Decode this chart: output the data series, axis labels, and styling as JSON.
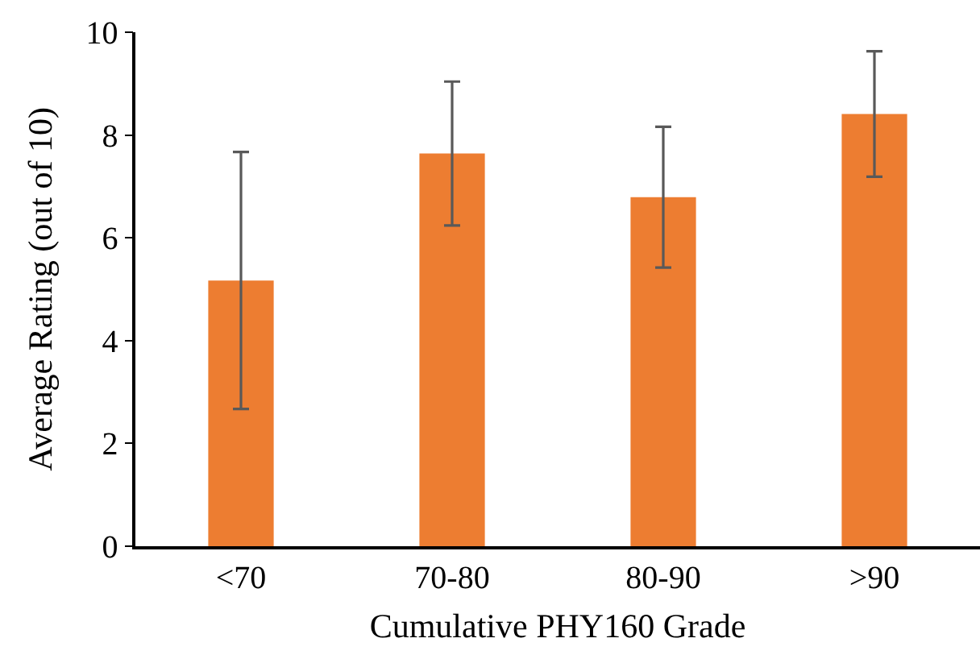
{
  "chart_data": {
    "type": "bar",
    "xlabel": "Cumulative PHY160 Grade",
    "ylabel": "Average Rating (out of 10)",
    "categories": [
      "<70",
      "70-80",
      "80-90",
      ">90"
    ],
    "values": [
      5.17,
      7.64,
      6.79,
      8.41
    ],
    "errors": [
      2.5,
      1.4,
      1.37,
      1.22
    ],
    "color": "#ed7d31",
    "ylim": [
      0,
      10
    ],
    "yticks": [
      0,
      2,
      4,
      6,
      8,
      10
    ]
  }
}
